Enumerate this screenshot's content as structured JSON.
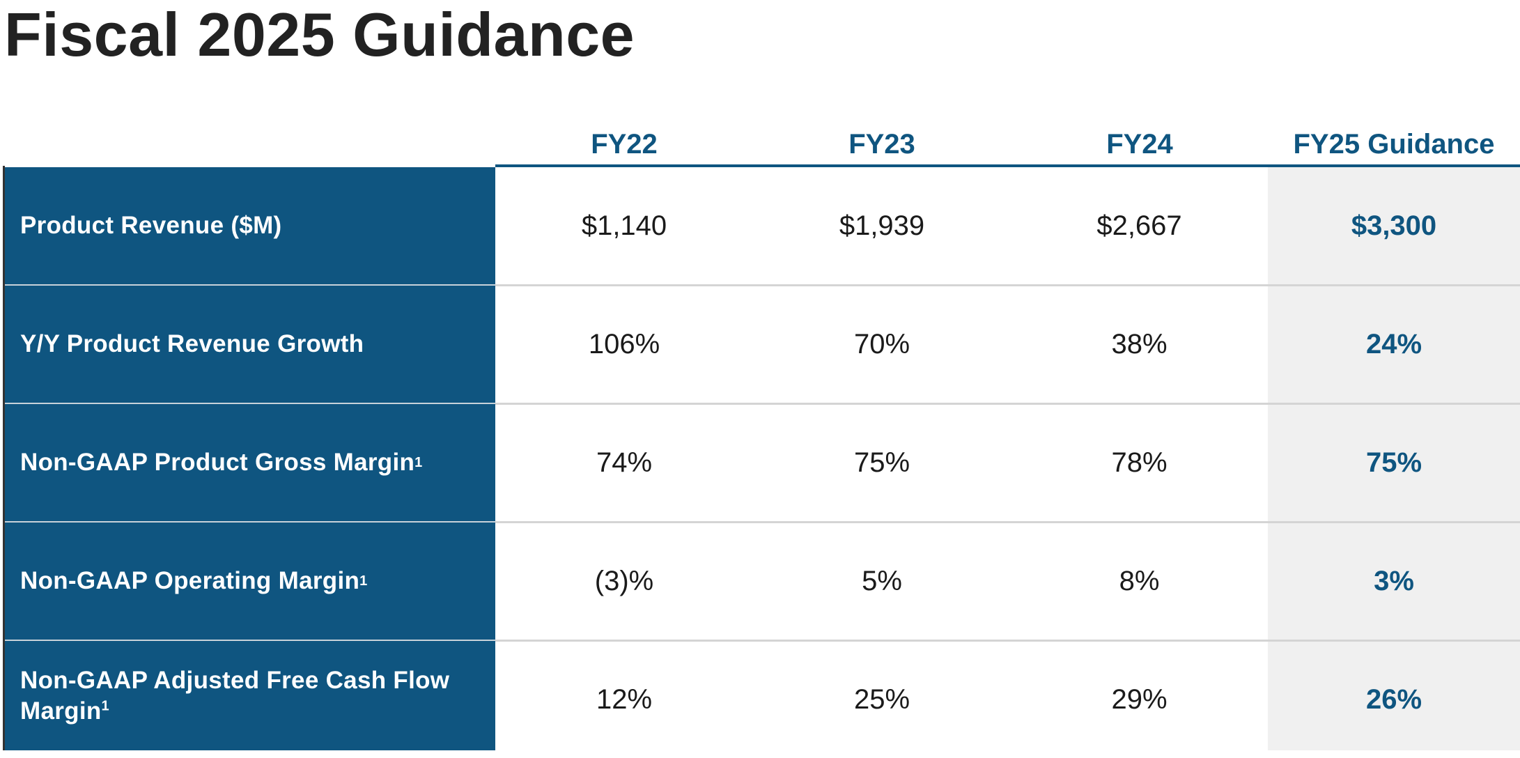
{
  "title": "Fiscal 2025 Guidance",
  "columns": [
    "FY22",
    "FY23",
    "FY24",
    "FY25 Guidance"
  ],
  "rows": [
    {
      "label": "Product Revenue ($M)",
      "footnote": "",
      "values": [
        "$1,140",
        "$1,939",
        "$2,667",
        "$3,300"
      ]
    },
    {
      "label": "Y/Y Product Revenue Growth",
      "footnote": "",
      "values": [
        "106%",
        "70%",
        "38%",
        "24%"
      ]
    },
    {
      "label": "Non-GAAP Product Gross Margin",
      "footnote": "1",
      "values": [
        "74%",
        "75%",
        "78%",
        "75%"
      ]
    },
    {
      "label": "Non-GAAP Operating Margin",
      "footnote": "1",
      "values": [
        "(3)%",
        "5%",
        "8%",
        "3%"
      ]
    },
    {
      "label": "Non-GAAP Adjusted Free Cash Flow Margin",
      "footnote": "1",
      "values": [
        "12%",
        "25%",
        "29%",
        "26%"
      ]
    }
  ],
  "colors": {
    "accent": "#0f5580",
    "guidance_background": "#f0f0f0",
    "title": "#222222"
  }
}
